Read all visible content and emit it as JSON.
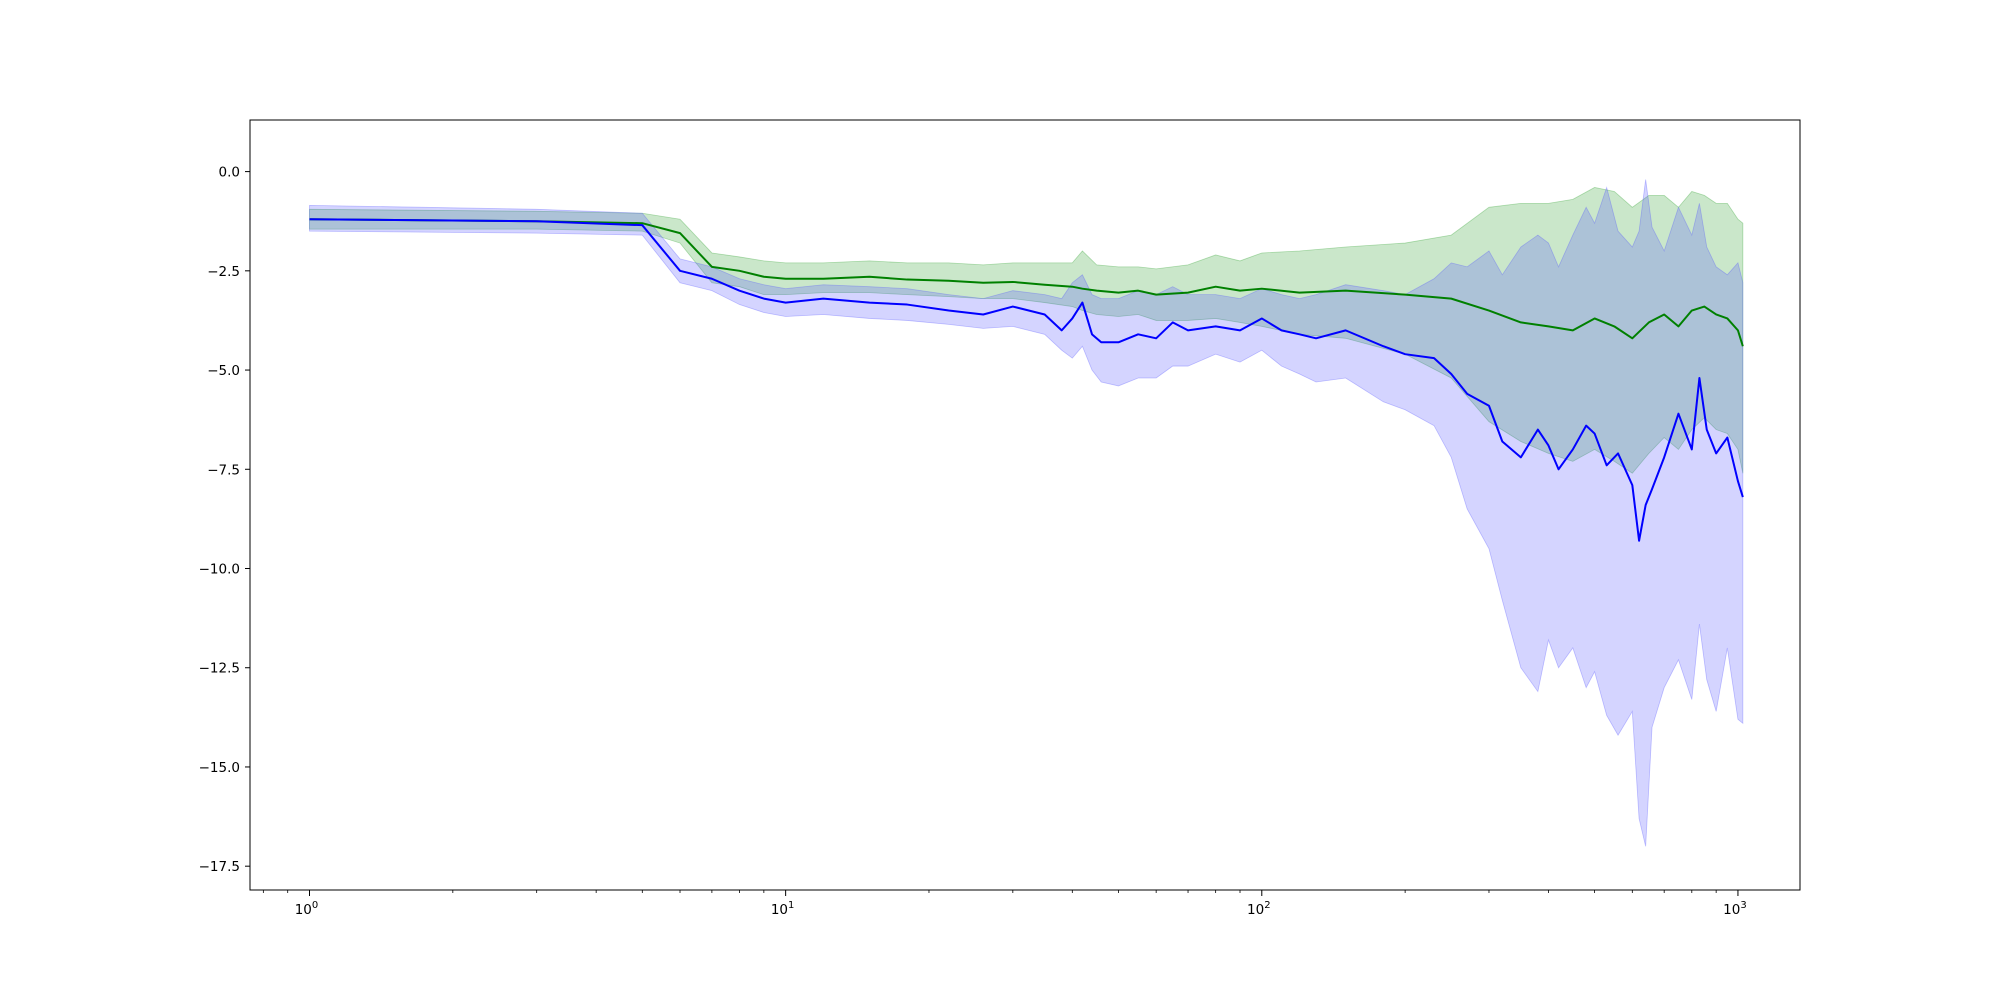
{
  "chart_data": {
    "type": "line",
    "title": "",
    "xlabel": "",
    "ylabel": "",
    "xscale": "log",
    "xlim": [
      0.75,
      1350
    ],
    "ylim": [
      -18.1,
      1.3
    ],
    "grid": false,
    "legend": "none",
    "y_ticks": [
      0.0,
      -2.5,
      -5.0,
      -7.5,
      -10.0,
      -12.5,
      -15.0,
      -17.5
    ],
    "y_tick_labels": [
      "0.0",
      "−2.5",
      "−5.0",
      "−7.5",
      "−10.0",
      "−12.5",
      "−15.0",
      "−17.5"
    ],
    "x_ticks": [
      {
        "value": 1,
        "base": "10",
        "exponent": "0"
      },
      {
        "value": 10,
        "base": "10",
        "exponent": "1"
      },
      {
        "value": 100,
        "base": "10",
        "exponent": "2"
      },
      {
        "value": 1000,
        "base": "10",
        "exponent": "3"
      }
    ],
    "series": [
      {
        "color": "#008000",
        "band_color": "#2ca02c",
        "x": [
          1,
          3,
          5,
          6,
          7,
          8,
          9,
          10,
          12,
          15,
          18,
          22,
          26,
          30,
          35,
          40,
          42,
          45,
          50,
          55,
          60,
          70,
          80,
          90,
          100,
          120,
          150,
          200,
          250,
          300,
          350,
          400,
          450,
          500,
          550,
          600,
          650,
          700,
          750,
          800,
          850,
          900,
          950,
          1000,
          1024
        ],
        "values": [
          -1.2,
          -1.25,
          -1.3,
          -1.55,
          -2.4,
          -2.5,
          -2.65,
          -2.7,
          -2.7,
          -2.65,
          -2.72,
          -2.75,
          -2.8,
          -2.78,
          -2.85,
          -2.9,
          -2.95,
          -3.0,
          -3.05,
          -3.0,
          -3.1,
          -3.05,
          -2.9,
          -3.0,
          -2.95,
          -3.05,
          -3.0,
          -3.1,
          -3.2,
          -3.5,
          -3.8,
          -3.9,
          -4.0,
          -3.7,
          -3.9,
          -4.2,
          -3.8,
          -3.6,
          -3.9,
          -3.5,
          -3.4,
          -3.6,
          -3.7,
          -4.0,
          -4.4
        ],
        "lower": [
          -1.45,
          -1.45,
          -1.5,
          -1.8,
          -2.8,
          -2.9,
          -3.1,
          -3.1,
          -3.05,
          -3.05,
          -3.1,
          -3.15,
          -3.2,
          -3.2,
          -3.3,
          -3.4,
          -3.5,
          -3.6,
          -3.65,
          -3.6,
          -3.75,
          -3.75,
          -3.7,
          -3.8,
          -3.9,
          -4.1,
          -4.2,
          -4.6,
          -5.2,
          -6.3,
          -6.8,
          -7.1,
          -7.3,
          -7.0,
          -7.3,
          -7.6,
          -7.1,
          -6.7,
          -7.0,
          -6.5,
          -6.2,
          -6.5,
          -6.6,
          -7.0,
          -7.6
        ],
        "upper": [
          -0.95,
          -1.0,
          -1.05,
          -1.2,
          -2.05,
          -2.15,
          -2.25,
          -2.3,
          -2.3,
          -2.25,
          -2.3,
          -2.3,
          -2.35,
          -2.3,
          -2.3,
          -2.3,
          -2.0,
          -2.35,
          -2.4,
          -2.4,
          -2.45,
          -2.35,
          -2.1,
          -2.25,
          -2.05,
          -2.0,
          -1.9,
          -1.8,
          -1.6,
          -0.9,
          -0.8,
          -0.8,
          -0.7,
          -0.4,
          -0.5,
          -0.9,
          -0.6,
          -0.6,
          -0.9,
          -0.5,
          -0.6,
          -0.8,
          -0.8,
          -1.2,
          -1.3
        ]
      },
      {
        "color": "#0000ff",
        "band_color": "#5555ff",
        "x": [
          1,
          3,
          5,
          6,
          7,
          8,
          9,
          10,
          12,
          15,
          18,
          22,
          26,
          30,
          35,
          38,
          40,
          42,
          44,
          46,
          50,
          55,
          60,
          65,
          70,
          80,
          90,
          100,
          110,
          120,
          130,
          150,
          180,
          200,
          230,
          250,
          270,
          300,
          320,
          350,
          380,
          400,
          420,
          450,
          480,
          500,
          530,
          560,
          600,
          620,
          640,
          660,
          700,
          750,
          800,
          830,
          860,
          900,
          950,
          1000,
          1024
        ],
        "values": [
          -1.2,
          -1.25,
          -1.35,
          -2.5,
          -2.7,
          -3.0,
          -3.2,
          -3.3,
          -3.2,
          -3.3,
          -3.35,
          -3.5,
          -3.6,
          -3.4,
          -3.6,
          -4.0,
          -3.7,
          -3.3,
          -4.1,
          -4.3,
          -4.3,
          -4.1,
          -4.2,
          -3.8,
          -4.0,
          -3.9,
          -4.0,
          -3.7,
          -4.0,
          -4.1,
          -4.2,
          -4.0,
          -4.4,
          -4.6,
          -4.7,
          -5.1,
          -5.6,
          -5.9,
          -6.8,
          -7.2,
          -6.5,
          -6.9,
          -7.5,
          -7.0,
          -6.4,
          -6.6,
          -7.4,
          -7.1,
          -7.9,
          -9.3,
          -8.4,
          -8.0,
          -7.2,
          -6.1,
          -7.0,
          -5.2,
          -6.5,
          -7.1,
          -6.7,
          -7.8,
          -8.2
        ],
        "lower": [
          -1.5,
          -1.55,
          -1.6,
          -2.8,
          -3.0,
          -3.35,
          -3.55,
          -3.65,
          -3.6,
          -3.7,
          -3.75,
          -3.85,
          -3.95,
          -3.9,
          -4.1,
          -4.5,
          -4.7,
          -4.4,
          -5.0,
          -5.3,
          -5.4,
          -5.2,
          -5.2,
          -4.9,
          -4.9,
          -4.6,
          -4.8,
          -4.5,
          -4.9,
          -5.1,
          -5.3,
          -5.2,
          -5.8,
          -6.0,
          -6.4,
          -7.2,
          -8.5,
          -9.5,
          -10.8,
          -12.5,
          -13.1,
          -11.8,
          -12.5,
          -12.0,
          -13.0,
          -12.6,
          -13.7,
          -14.2,
          -13.6,
          -16.3,
          -17.0,
          -14.0,
          -13.0,
          -12.3,
          -13.3,
          -11.4,
          -12.8,
          -13.6,
          -12.0,
          -13.8,
          -13.9
        ],
        "upper": [
          -0.85,
          -0.95,
          -1.05,
          -2.2,
          -2.4,
          -2.7,
          -2.85,
          -2.95,
          -2.85,
          -2.9,
          -2.95,
          -3.1,
          -3.2,
          -3.0,
          -3.1,
          -3.2,
          -2.8,
          -2.6,
          -3.1,
          -3.2,
          -3.2,
          -3.0,
          -3.1,
          -2.9,
          -3.1,
          -3.1,
          -3.2,
          -2.95,
          -3.1,
          -3.2,
          -3.1,
          -2.85,
          -3.0,
          -3.1,
          -2.7,
          -2.3,
          -2.4,
          -2.0,
          -2.6,
          -1.9,
          -1.6,
          -1.8,
          -2.4,
          -1.6,
          -0.9,
          -1.3,
          -0.4,
          -1.5,
          -1.9,
          -1.5,
          -0.2,
          -1.4,
          -2.0,
          -0.9,
          -1.6,
          -0.8,
          -1.9,
          -2.4,
          -2.6,
          -2.3,
          -2.8
        ]
      }
    ]
  }
}
